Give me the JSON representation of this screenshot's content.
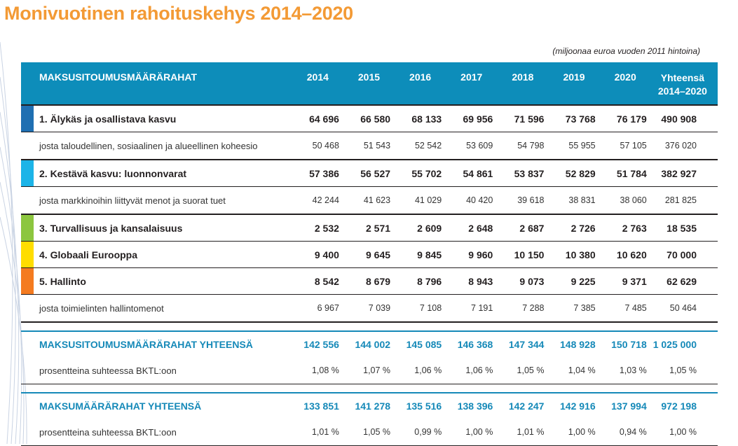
{
  "title": "Monivuotinen rahoituskehys 2014–2020",
  "unit_note": "(miljoonaa euroa vuoden 2011 hintoina)",
  "header": {
    "label": "MAKSUSITOUMUSMÄÄRÄRAHAT",
    "years": [
      "2014",
      "2015",
      "2016",
      "2017",
      "2018",
      "2019",
      "2020"
    ],
    "total_line1": "Yhteensä",
    "total_line2": "2014–2020"
  },
  "rows": [
    {
      "type": "main",
      "label": "1. Älykäs ja osallistava kasvu",
      "color": "#1f6fb2",
      "values": [
        "64 696",
        "66 580",
        "68 133",
        "69 956",
        "71 596",
        "73 768",
        "76 179"
      ],
      "total": "490 908"
    },
    {
      "type": "sub",
      "label": "josta taloudellinen, sosiaalinen ja alueellinen koheesio",
      "values": [
        "50 468",
        "51 543",
        "52 542",
        "53 609",
        "54 798",
        "55 955",
        "57 105"
      ],
      "total": "376 020"
    },
    {
      "type": "main",
      "label": "2. Kestävä kasvu: luonnonvarat",
      "color": "#1cb4e8",
      "values": [
        "57 386",
        "56 527",
        "55 702",
        "54 861",
        "53 837",
        "52 829",
        "51 784"
      ],
      "total": "382 927"
    },
    {
      "type": "sub",
      "label": "josta markkinoihin liittyvät menot ja suorat tuet",
      "values": [
        "42 244",
        "41 623",
        "41 029",
        "40 420",
        "39 618",
        "38 831",
        "38 060"
      ],
      "total": "281 825"
    },
    {
      "type": "main",
      "label": "3. Turvallisuus ja kansalaisuus",
      "color": "#8cc63f",
      "values": [
        "2 532",
        "2 571",
        "2 609",
        "2 648",
        "2 687",
        "2 726",
        "2 763"
      ],
      "total": "18 535"
    },
    {
      "type": "main",
      "label": "4. Globaali Eurooppa",
      "color": "#ffdd00",
      "values": [
        "9 400",
        "9 645",
        "9 845",
        "9 960",
        "10 150",
        "10 380",
        "10 620"
      ],
      "total": "70 000"
    },
    {
      "type": "main",
      "label": "5. Hallinto",
      "color": "#f47b20",
      "values": [
        "8 542",
        "8 679",
        "8 796",
        "8 943",
        "9 073",
        "9 225",
        "9 371"
      ],
      "total": "62 629"
    },
    {
      "type": "sub",
      "label": "josta toimielinten hallintomenot",
      "values": [
        "6 967",
        "7 039",
        "7 108",
        "7 191",
        "7 288",
        "7 385",
        "7 485"
      ],
      "total": "50 464"
    }
  ],
  "totals": [
    {
      "label": "MAKSUSITOUMUSMÄÄRÄRAHAT YHTEENSÄ",
      "values": [
        "142 556",
        "144 002",
        "145 085",
        "146 368",
        "147 344",
        "148 928",
        "150 718"
      ],
      "total": "1 025 000",
      "pct_label": "prosentteina suhteessa BKTL:oon",
      "pct_values": [
        "1,08 %",
        "1,07 %",
        "1,06 %",
        "1,06 %",
        "1,05 %",
        "1,04 %",
        "1,03 %"
      ],
      "pct_total": "1,05 %"
    },
    {
      "label": "MAKSUMÄÄRÄRAHAT YHTEENSÄ",
      "values": [
        "133 851",
        "141 278",
        "135 516",
        "138 396",
        "142 247",
        "142 916",
        "137 994"
      ],
      "total": "972 198",
      "pct_label": "prosentteina suhteessa BKTL:oon",
      "pct_values": [
        "1,01 %",
        "1,05 %",
        "0,99 %",
        "1,00 %",
        "1,01 %",
        "1,00 %",
        "0,94 %"
      ],
      "pct_total": "1,00 %"
    }
  ]
}
